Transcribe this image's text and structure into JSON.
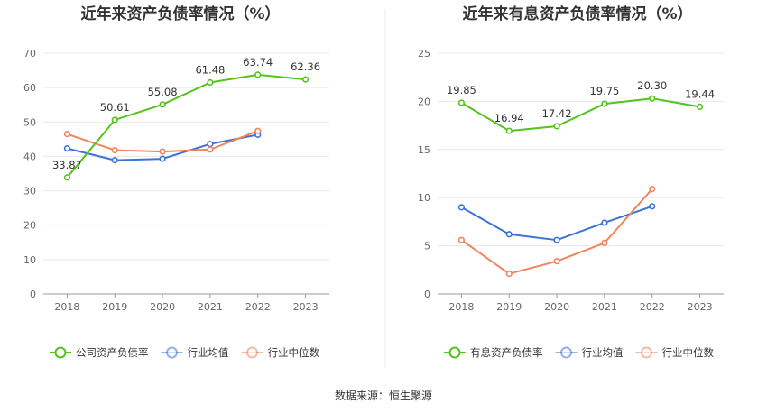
{
  "source": "数据来源：恒生聚源",
  "chart_data": [
    {
      "type": "line",
      "title": "近年来资产负债率情况（%）",
      "categories": [
        "2018",
        "2019",
        "2020",
        "2021",
        "2022",
        "2023"
      ],
      "ylim": [
        0,
        70
      ],
      "yticks": [
        0,
        10,
        20,
        30,
        40,
        50,
        60,
        70
      ],
      "grid": true,
      "legend": "bottom",
      "series": [
        {
          "name": "公司资产负债率",
          "color": "#52c41a",
          "values": [
            33.87,
            50.61,
            55.08,
            61.48,
            63.74,
            62.36
          ],
          "labels": [
            "33.87",
            "50.61",
            "55.08",
            "61.48",
            "63.74",
            "62.36"
          ]
        },
        {
          "name": "行业均值",
          "color": "#3d72d9",
          "values": [
            42.3,
            38.9,
            39.3,
            43.6,
            46.3,
            null
          ]
        },
        {
          "name": "行业中位数",
          "color": "#f0845e",
          "values": [
            46.5,
            41.8,
            41.4,
            42.0,
            47.4,
            null
          ]
        }
      ]
    },
    {
      "type": "line",
      "title": "近年来有息资产负债率情况（%）",
      "categories": [
        "2018",
        "2019",
        "2020",
        "2021",
        "2022",
        "2023"
      ],
      "ylim": [
        0,
        25
      ],
      "yticks": [
        0,
        5,
        10,
        15,
        20,
        25
      ],
      "grid": true,
      "legend": "bottom",
      "series": [
        {
          "name": "有息资产负债率",
          "color": "#52c41a",
          "values": [
            19.85,
            16.94,
            17.42,
            19.75,
            20.3,
            19.44
          ],
          "labels": [
            "19.85",
            "16.94",
            "17.42",
            "19.75",
            "20.30",
            "19.44"
          ]
        },
        {
          "name": "行业均值",
          "color": "#3d72d9",
          "values": [
            9.0,
            6.2,
            5.6,
            7.4,
            9.1,
            null
          ]
        },
        {
          "name": "行业中位数",
          "color": "#f0845e",
          "values": [
            5.6,
            2.1,
            3.4,
            5.3,
            10.9,
            null
          ]
        }
      ]
    }
  ]
}
